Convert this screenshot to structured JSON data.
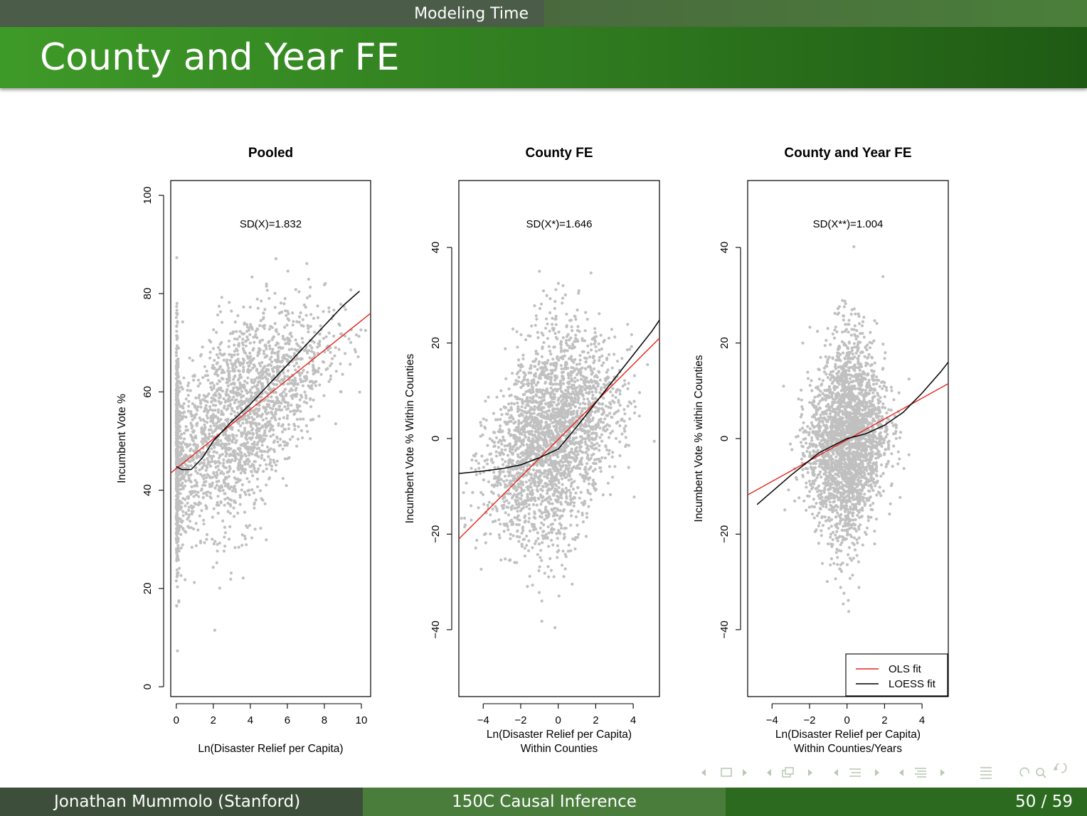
{
  "header": {
    "section": "Modeling Time"
  },
  "frame": {
    "title": "County and Year FE"
  },
  "footer": {
    "author": "Jonathan Mummolo  (Stanford)",
    "course": "150C Causal Inference",
    "page": "50 / 59"
  },
  "colors": {
    "points": "#c0c0c0",
    "ols": "#e8211c",
    "loess": "#000000",
    "title_green": "#338a22"
  },
  "nav_icons": [
    "frame-prev-icon",
    "frame-icon",
    "frame-next-icon",
    "subsection-prev-icon",
    "subsection-icon",
    "subsection-next-icon",
    "section-prev-icon",
    "section-icon",
    "section-next-icon",
    "doc-prev-icon",
    "doc-icon",
    "doc-next-icon",
    "toc-icon",
    "search-icon",
    "back-icon"
  ],
  "chart_data": [
    {
      "type": "scatter",
      "title": "Pooled",
      "annotation": "SD(X)=1.832",
      "xlabel": "Ln(Disaster Relief per Capita)",
      "ylabel": "Incumbent Vote %",
      "xlim": [
        -0.3,
        10.5
      ],
      "ylim": [
        -2,
        103
      ],
      "xticks": [
        0,
        2,
        4,
        6,
        8,
        10
      ],
      "yticks": [
        0,
        20,
        40,
        60,
        80,
        100
      ],
      "cloud": {
        "x_center": 3.4,
        "x_spread": 2.3,
        "y_center": 51,
        "y_spread": 11,
        "mass_at_zero": true
      },
      "ols_fit": [
        [
          -0.3,
          43.5
        ],
        [
          10.5,
          76
        ]
      ],
      "loess_fit": [
        [
          0,
          44.8
        ],
        [
          0.3,
          44.2
        ],
        [
          0.8,
          44.2
        ],
        [
          1.4,
          46.5
        ],
        [
          2,
          50
        ],
        [
          3,
          54
        ],
        [
          4,
          57.5
        ],
        [
          5,
          61.5
        ],
        [
          6,
          65.5
        ],
        [
          7,
          69.5
        ],
        [
          8,
          73.5
        ],
        [
          9,
          77.5
        ],
        [
          9.9,
          80.5
        ]
      ],
      "grid": false,
      "legend": null
    },
    {
      "type": "scatter",
      "title": "County FE",
      "annotation": "SD(X*)=1.646",
      "xlabel": "Ln(Disaster Relief per Capita)\nWithin Counties",
      "ylabel": "Incumbent Vote % Within Counties",
      "xlim": [
        -5.3,
        5.4
      ],
      "ylim": [
        -54,
        54
      ],
      "xticks": [
        -4,
        -2,
        0,
        2,
        4
      ],
      "yticks": [
        -40,
        -20,
        0,
        20,
        40
      ],
      "cloud": {
        "x_center": -0.3,
        "x_spread": 1.7,
        "y_center": 2,
        "y_spread": 12
      },
      "ols_fit": [
        [
          -5.3,
          -21
        ],
        [
          5.4,
          21
        ]
      ],
      "loess_fit": [
        [
          -5.3,
          -7.3
        ],
        [
          -4,
          -6.8
        ],
        [
          -3,
          -6.3
        ],
        [
          -2,
          -5.5
        ],
        [
          -1,
          -4
        ],
        [
          0,
          -2.2
        ],
        [
          1,
          2.5
        ],
        [
          2,
          7.5
        ],
        [
          3,
          12.5
        ],
        [
          4,
          17.5
        ],
        [
          5,
          22.5
        ],
        [
          5.4,
          24.8
        ]
      ],
      "grid": false,
      "legend": null
    },
    {
      "type": "scatter",
      "title": "County and Year FE",
      "annotation": "SD(X**)=1.004",
      "xlabel": "Ln(Disaster Relief per Capita)\nWithin Counties/Years",
      "ylabel": "Incumbent Vote % within Counties",
      "xlim": [
        -5.3,
        5.4
      ],
      "ylim": [
        -54,
        54
      ],
      "xticks": [
        -4,
        -2,
        0,
        2,
        4
      ],
      "yticks": [
        -40,
        -20,
        0,
        20,
        40
      ],
      "cloud": {
        "x_center": 0,
        "x_spread": 1.0,
        "y_center": 0,
        "y_spread": 12
      },
      "ols_fit": [
        [
          -5.3,
          -11.8
        ],
        [
          5.4,
          11.5
        ]
      ],
      "loess_fit": [
        [
          -4.8,
          -13.8
        ],
        [
          -3,
          -7.7
        ],
        [
          -1.5,
          -3
        ],
        [
          0,
          0
        ],
        [
          1,
          1
        ],
        [
          2,
          2.8
        ],
        [
          3,
          5.5
        ],
        [
          4,
          9.5
        ],
        [
          5,
          14
        ],
        [
          5.4,
          16
        ]
      ],
      "grid": false,
      "legend": {
        "position": "bottom-right",
        "entries": [
          "OLS fit",
          "LOESS fit"
        ]
      }
    }
  ]
}
